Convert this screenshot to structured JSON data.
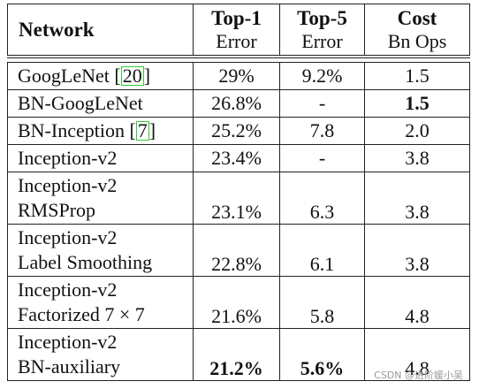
{
  "header": {
    "network": "Network",
    "top1_title": "Top-1",
    "top1_sub": "Error",
    "top5_title": "Top-5",
    "top5_sub": "Error",
    "cost_title": "Cost",
    "cost_sub": "Bn Ops"
  },
  "rows": [
    {
      "name": "GoogLeNet [",
      "ref": "20",
      "name_end": "]",
      "top1": "29%",
      "top5": "9.2%",
      "cost": "1.5"
    },
    {
      "name": "BN-GoogLeNet",
      "top1": "26.8%",
      "top5": "-",
      "cost": "1.5",
      "cost_bold": true
    },
    {
      "name": "BN-Inception [",
      "ref": "7",
      "name_end": "]",
      "top1": "25.2%",
      "top5": "7.8",
      "cost": "2.0"
    },
    {
      "name": "Inception-v2",
      "top1": "23.4%",
      "top5": "-",
      "cost": "3.8"
    },
    {
      "name": "Inception-v2",
      "name2": "RMSProp",
      "top1": "23.1%",
      "top5": "6.3",
      "cost": "3.8"
    },
    {
      "name": "Inception-v2",
      "name2": "Label Smoothing",
      "top1": "22.8%",
      "top5": "6.1",
      "cost": "3.8"
    },
    {
      "name": "Inception-v2",
      "name2": "Factorized 7 × 7",
      "top1": "21.6%",
      "top5": "5.8",
      "cost": "4.8"
    },
    {
      "name": "Inception-v2",
      "name2": "BN-auxiliary",
      "top1": "21.2%",
      "top5": "5.6%",
      "cost": "4.8",
      "top1_bold": true,
      "top5_bold": true
    }
  ],
  "watermark": "CSDN @进阶媛小吴"
}
